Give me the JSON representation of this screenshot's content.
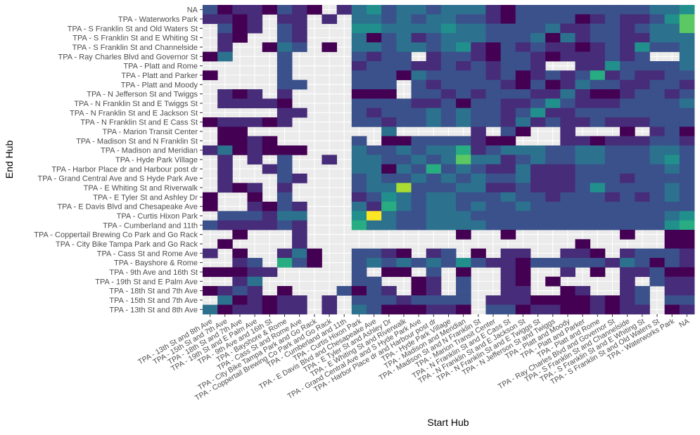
{
  "chart_data": {
    "type": "heatmap",
    "title": "",
    "xlabel": "Start Hub",
    "ylabel": "End Hub",
    "x_categories": [
      "TPA - 13th St and 8th Ave",
      "TPA - 15th St and 7th Ave",
      "TPA - 18th St and 7th Ave",
      "TPA - 19th St and E Palm Ave",
      "TPA - 9th Ave and 16th St",
      "TPA - Bayshore & Rome",
      "TPA - Cass St and Rome Ave",
      "TPA - City Bike Tampa Park and Go Rack",
      "TPA - Coppertail Brewing Co Park and Go Rack",
      "TPA - Cumberland and 11th",
      "TPA - Curtis Hixon Park",
      "TPA - E Davis Blvd and Chesapeake Ave",
      "TPA - E Tyler St and Ashley Dr",
      "TPA - E Whiting St and Riverwalk",
      "TPA - Grand Central Ave and S Hyde Park Ave",
      "TPA - Harbor Place dr and Harbour post dr",
      "TPA - Hyde Park Village",
      "TPA - Madison and Meridian",
      "TPA - Madison St and N Franklin St",
      "TPA - Marion Transit Center",
      "TPA - N Franklin St and E Cass St",
      "TPA - N Franklin St and E Jackson St",
      "TPA - N Franklin St and E Twiggs St",
      "TPA - N Jefferson St and Twiggs",
      "TPA - Platt and Moody",
      "TPA - Platt and Parker",
      "TPA - Platt and Rome",
      "TPA - Ray Charles Blvd and Governor St",
      "TPA - S Franklin St and Channelside",
      "TPA - S Franklin St and E Whiting St",
      "TPA - S Franklin St and Old Waters St",
      "TPA - Waterworks Park",
      "NA"
    ],
    "y_categories": [
      "NA",
      "TPA - Waterworks Park",
      "TPA - S Franklin St and Old Waters St",
      "TPA - S Franklin St and E Whiting St",
      "TPA - S Franklin St and Channelside",
      "TPA - Ray Charles Blvd and Governor St",
      "TPA - Platt and Rome",
      "TPA - Platt and Parker",
      "TPA - Platt and Moody",
      "TPA - N Jefferson St and Twiggs",
      "TPA - N Franklin St and E Twiggs St",
      "TPA - N Franklin St and E Jackson St",
      "TPA - N Franklin St and E Cass St",
      "TPA - Marion Transit Center",
      "TPA - Madison St and N Franklin St",
      "TPA - Madison and Meridian",
      "TPA - Hyde Park Village",
      "TPA - Harbor Place dr and Harbour post dr",
      "TPA - Grand Central Ave and S Hyde Park Ave",
      "TPA - E Whiting St and Riverwalk",
      "TPA - E Tyler St and Ashley Dr",
      "TPA - E Davis Blvd and Chesapeake Ave",
      "TPA - Curtis Hixon Park",
      "TPA - Cumberland and 11th",
      "TPA - Coppertail Brewing Co Park and Go Rack",
      "TPA - City Bike Tampa Park and Go Rack",
      "TPA - Cass St and Rome Ave",
      "TPA - Bayshore & Rome",
      "TPA - 9th Ave and 16th St",
      "TPA - 19th St and E Palm Ave",
      "TPA - 18th St and 7th Ave",
      "TPA - 15th St and 7th Ave",
      "TPA - 13th St and 8th Ave"
    ],
    "values": [
      [
        2,
        0,
        1,
        1,
        0,
        2,
        1,
        0,
        null,
        1,
        3,
        4,
        2,
        3,
        3,
        2,
        3,
        3,
        3,
        1,
        0,
        2,
        2,
        2,
        2,
        2,
        2,
        2,
        2,
        2,
        3,
        3,
        4
      ],
      [
        1,
        1,
        0,
        1,
        null,
        1,
        1,
        null,
        1,
        null,
        3,
        3,
        2,
        3,
        2,
        3,
        3,
        2,
        2,
        1,
        0,
        2,
        2,
        2,
        2,
        0,
        1,
        2,
        1,
        1,
        2,
        4,
        6
      ],
      [
        null,
        2,
        0,
        1,
        null,
        2,
        1,
        null,
        null,
        null,
        4,
        4,
        3,
        3,
        3,
        3,
        4,
        3,
        3,
        2,
        2,
        2,
        2,
        3,
        1,
        1,
        2,
        2,
        1,
        2,
        3,
        3,
        6
      ],
      [
        null,
        1,
        0,
        null,
        null,
        2,
        1,
        null,
        null,
        null,
        3,
        0,
        2,
        3,
        1,
        2,
        3,
        3,
        3,
        2,
        2,
        2,
        3,
        0,
        3,
        1,
        2,
        2,
        1,
        1,
        3,
        3,
        3
      ],
      [
        null,
        1,
        null,
        null,
        0,
        3,
        2,
        null,
        0,
        null,
        3,
        3,
        2,
        3,
        3,
        2,
        3,
        4,
        1,
        0,
        2,
        1,
        2,
        1,
        1,
        0,
        1,
        2,
        1,
        4,
        2,
        2,
        3
      ],
      [
        0,
        3,
        null,
        null,
        null,
        2,
        null,
        null,
        null,
        null,
        2,
        1,
        2,
        2,
        null,
        1,
        2,
        2,
        1,
        0,
        2,
        2,
        1,
        0,
        1,
        1,
        1,
        2,
        1,
        2,
        null,
        null,
        3
      ],
      [
        null,
        null,
        null,
        null,
        null,
        2,
        null,
        null,
        null,
        null,
        1,
        2,
        2,
        2,
        1,
        1,
        2,
        1,
        2,
        1,
        2,
        2,
        1,
        null,
        null,
        1,
        1,
        4,
        2,
        2,
        2,
        2,
        3
      ],
      [
        0,
        null,
        null,
        null,
        null,
        2,
        null,
        null,
        null,
        null,
        2,
        2,
        2,
        0,
        3,
        2,
        2,
        2,
        2,
        1,
        2,
        0,
        1,
        2,
        1,
        2,
        5,
        1,
        2,
        1,
        1,
        2,
        2
      ],
      [
        null,
        null,
        null,
        null,
        null,
        2,
        2,
        null,
        null,
        null,
        2,
        2,
        2,
        null,
        2,
        1,
        2,
        2,
        2,
        2,
        1,
        0,
        2,
        0,
        1,
        3,
        2,
        2,
        1,
        1,
        2,
        2,
        1
      ],
      [
        null,
        1,
        0,
        1,
        null,
        1,
        null,
        null,
        null,
        null,
        0,
        0,
        0,
        null,
        2,
        2,
        1,
        2,
        1,
        2,
        2,
        2,
        1,
        1,
        3,
        1,
        0,
        0,
        1,
        2,
        2,
        1,
        2
      ],
      [
        null,
        1,
        1,
        1,
        1,
        0,
        null,
        null,
        null,
        null,
        2,
        2,
        2,
        2,
        1,
        1,
        2,
        0,
        2,
        2,
        1,
        1,
        2,
        4,
        2,
        1,
        1,
        1,
        2,
        2,
        2,
        2,
        3
      ],
      [
        null,
        null,
        null,
        null,
        null,
        1,
        1,
        null,
        null,
        null,
        2,
        1,
        2,
        2,
        2,
        3,
        2,
        3,
        2,
        2,
        1,
        2,
        4,
        1,
        1,
        2,
        2,
        2,
        2,
        2,
        2,
        2,
        2
      ],
      [
        0,
        1,
        1,
        1,
        0,
        1,
        null,
        null,
        null,
        null,
        2,
        2,
        1,
        2,
        2,
        3,
        2,
        3,
        2,
        2,
        1,
        3,
        1,
        2,
        1,
        1,
        2,
        1,
        1,
        1,
        2,
        2,
        2
      ],
      [
        null,
        0,
        0,
        null,
        null,
        null,
        null,
        null,
        null,
        null,
        null,
        null,
        3,
        null,
        null,
        null,
        null,
        null,
        1,
        null,
        2,
        0,
        null,
        null,
        1,
        null,
        null,
        null,
        0,
        null,
        1,
        2,
        0
      ],
      [
        null,
        0,
        0,
        1,
        0,
        null,
        null,
        null,
        null,
        null,
        2,
        null,
        0,
        0,
        2,
        2,
        2,
        2,
        1,
        0,
        0,
        null,
        null,
        null,
        1,
        1,
        0,
        1,
        1,
        1,
        2,
        2,
        1
      ],
      [
        1,
        3,
        0,
        1,
        0,
        0,
        0,
        null,
        null,
        null,
        3,
        2,
        2,
        3,
        2,
        3,
        3,
        5,
        1,
        2,
        3,
        3,
        3,
        2,
        2,
        3,
        3,
        2,
        2,
        2,
        3,
        3,
        2
      ],
      [
        null,
        1,
        null,
        1,
        null,
        2,
        null,
        null,
        1,
        null,
        3,
        3,
        2,
        2,
        3,
        2,
        3,
        6,
        3,
        3,
        1,
        2,
        3,
        2,
        2,
        3,
        3,
        2,
        2,
        2,
        3,
        4,
        2
      ],
      [
        null,
        1,
        null,
        null,
        1,
        2,
        null,
        null,
        null,
        null,
        3,
        3,
        0,
        3,
        2,
        5,
        2,
        3,
        2,
        1,
        1,
        3,
        1,
        1,
        1,
        2,
        2,
        2,
        2,
        2,
        2,
        3,
        2
      ],
      [
        null,
        1,
        null,
        null,
        null,
        2,
        1,
        null,
        null,
        null,
        2,
        3,
        2,
        2,
        3,
        2,
        3,
        2,
        3,
        2,
        2,
        3,
        1,
        1,
        1,
        2,
        2,
        2,
        1,
        2,
        2,
        2,
        2
      ],
      [
        null,
        1,
        0,
        1,
        null,
        1,
        null,
        null,
        null,
        null,
        2,
        3,
        3,
        7,
        2,
        2,
        2,
        3,
        3,
        1,
        1,
        2,
        1,
        1,
        1,
        2,
        4,
        2,
        2,
        2,
        2,
        3,
        2
      ],
      [
        0,
        null,
        null,
        0,
        null,
        2,
        null,
        null,
        null,
        null,
        1,
        2,
        4,
        3,
        2,
        3,
        3,
        2,
        2,
        2,
        3,
        2,
        2,
        1,
        2,
        2,
        2,
        1,
        2,
        1,
        2,
        3,
        2
      ],
      [
        0,
        null,
        null,
        1,
        0,
        2,
        1,
        null,
        null,
        null,
        3,
        1,
        5,
        3,
        2,
        3,
        3,
        2,
        3,
        2,
        2,
        3,
        2,
        2,
        2,
        2,
        2,
        2,
        2,
        2,
        2,
        2,
        2
      ],
      [
        null,
        2,
        2,
        2,
        1,
        3,
        3,
        null,
        null,
        null,
        4,
        8,
        3,
        2,
        2,
        3,
        3,
        3,
        2,
        2,
        2,
        2,
        2,
        2,
        2,
        2,
        2,
        2,
        2,
        2,
        2,
        3,
        4
      ],
      [
        2,
        1,
        1,
        1,
        1,
        2,
        1,
        null,
        null,
        null,
        5,
        3,
        3,
        2,
        2,
        3,
        3,
        3,
        3,
        2,
        2,
        2,
        2,
        2,
        2,
        2,
        2,
        2,
        2,
        2,
        2,
        4,
        5
      ],
      [
        null,
        null,
        0,
        null,
        null,
        null,
        1,
        null,
        null,
        null,
        null,
        null,
        null,
        null,
        null,
        null,
        null,
        0,
        null,
        null,
        0,
        null,
        null,
        null,
        null,
        null,
        null,
        null,
        0,
        null,
        null,
        0,
        0
      ],
      [
        null,
        0,
        null,
        null,
        null,
        null,
        1,
        null,
        null,
        null,
        null,
        null,
        null,
        null,
        null,
        null,
        null,
        null,
        null,
        null,
        null,
        null,
        null,
        null,
        null,
        0,
        null,
        null,
        null,
        null,
        null,
        0,
        0
      ],
      [
        1,
        null,
        0,
        null,
        null,
        1,
        3,
        0,
        null,
        null,
        2,
        2,
        1,
        0,
        null,
        1,
        2,
        null,
        0,
        null,
        1,
        1,
        null,
        null,
        1,
        1,
        0,
        null,
        1,
        2,
        2,
        2,
        1
      ],
      [
        null,
        null,
        1,
        2,
        null,
        5,
        2,
        0,
        null,
        null,
        2,
        3,
        2,
        3,
        2,
        3,
        2,
        4,
        2,
        1,
        1,
        0,
        2,
        2,
        2,
        2,
        2,
        1,
        3,
        2,
        0,
        2,
        1
      ],
      [
        0,
        0,
        0,
        1,
        1,
        null,
        null,
        null,
        null,
        null,
        2,
        null,
        0,
        0,
        null,
        2,
        null,
        0,
        null,
        null,
        1,
        0,
        null,
        null,
        1,
        null,
        0,
        null,
        1,
        1,
        2,
        0,
        0
      ],
      [
        null,
        null,
        1,
        3,
        null,
        null,
        null,
        null,
        null,
        null,
        2,
        2,
        null,
        null,
        0,
        1,
        null,
        2,
        null,
        null,
        1,
        0,
        null,
        0,
        null,
        null,
        null,
        null,
        1,
        null,
        2,
        1,
        1
      ],
      [
        0,
        1,
        2,
        1,
        null,
        0,
        null,
        null,
        null,
        2,
        0,
        2,
        1,
        null,
        0,
        1,
        null,
        2,
        null,
        null,
        1,
        1,
        null,
        null,
        0,
        1,
        null,
        null,
        1,
        2,
        null,
        1,
        1
      ],
      [
        null,
        3,
        0,
        1,
        0,
        1,
        1,
        null,
        1,
        null,
        2,
        2,
        2,
        1,
        2,
        2,
        2,
        2,
        null,
        1,
        1,
        1,
        0,
        0,
        0,
        0,
        1,
        0,
        1,
        2,
        null,
        2,
        2
      ],
      [
        3,
        0,
        1,
        1,
        0,
        1,
        1,
        null,
        1,
        null,
        3,
        2,
        0,
        0,
        0,
        1,
        1,
        0,
        null,
        2,
        2,
        0,
        1,
        1,
        0,
        0,
        1,
        0,
        1,
        1,
        null,
        0,
        1
      ]
    ],
    "color_scale": [
      "#440154",
      "#472c7a",
      "#3b518b",
      "#2c718e",
      "#21908d",
      "#27ad81",
      "#5cc863",
      "#aadc32",
      "#fde725"
    ],
    "missing_color": "#ebebeb",
    "legend": "none"
  }
}
